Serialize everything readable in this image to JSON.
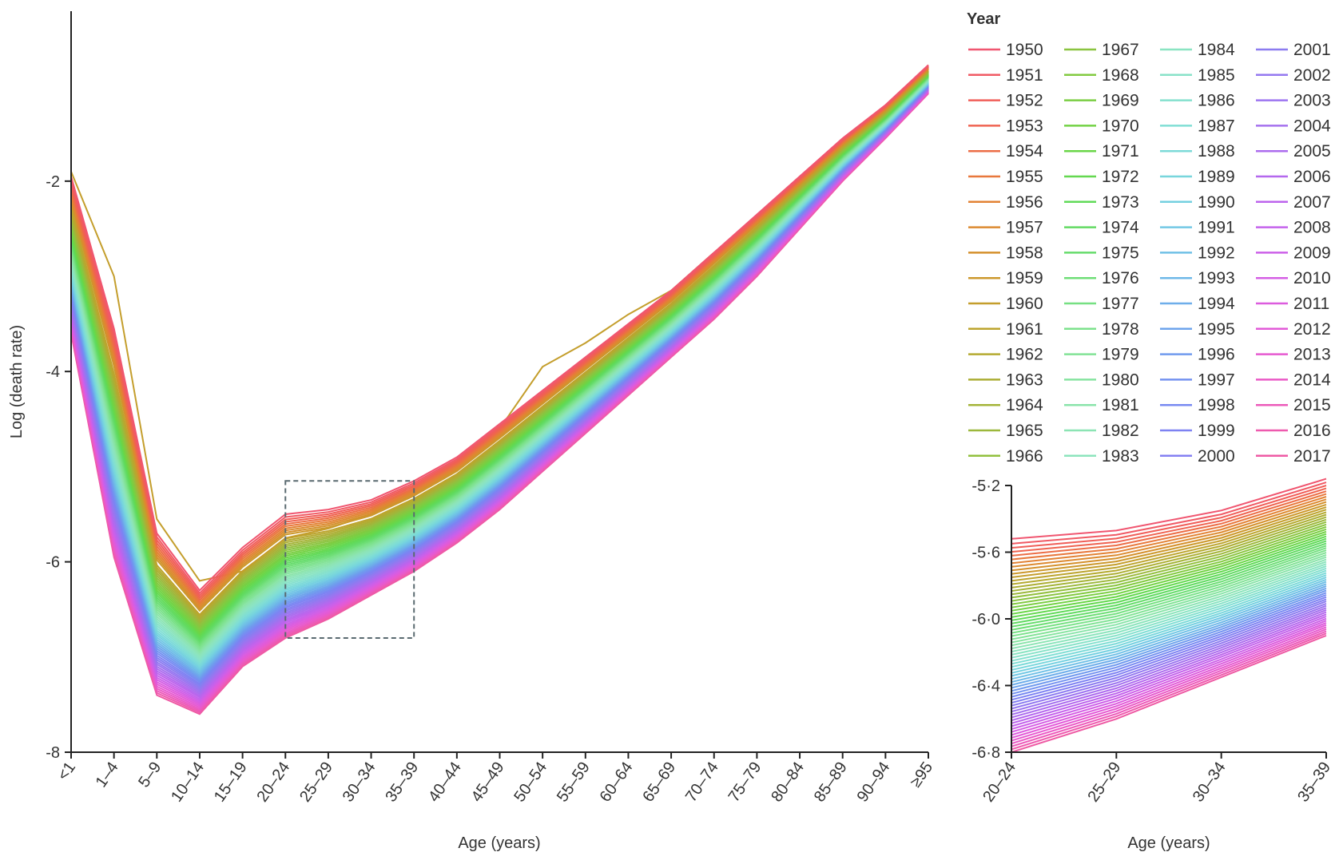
{
  "chart_data": [
    {
      "id": "main",
      "type": "line",
      "xlabel": "Age (years)",
      "ylabel": "Log (death rate)",
      "categories": [
        "<1",
        "1–4",
        "5–9",
        "10–14",
        "15–19",
        "20–24",
        "25–29",
        "30–34",
        "35–39",
        "40–44",
        "45–49",
        "50–54",
        "55–59",
        "60–64",
        "65–69",
        "70–74",
        "75–79",
        "80–84",
        "85–89",
        "90–94",
        "≥95"
      ],
      "ylim": [
        -8,
        -0.55
      ],
      "yticks": [
        -2,
        -4,
        -6,
        -8
      ],
      "ytick_labels": [
        "-2",
        "-4",
        "-6",
        "-8"
      ],
      "series_first": {
        "name": "1950",
        "values": [
          -1.95,
          -3.55,
          -5.7,
          -6.3,
          -5.85,
          -5.5,
          -5.45,
          -5.35,
          -5.15,
          -4.9,
          -4.55,
          -4.2,
          -3.85,
          -3.5,
          -3.15,
          -2.75,
          -2.35,
          -1.95,
          -1.55,
          -1.2,
          -0.78
        ]
      },
      "series_last": {
        "name": "2017",
        "values": [
          -3.6,
          -5.95,
          -7.4,
          -7.6,
          -7.1,
          -6.8,
          -6.6,
          -6.35,
          -6.1,
          -5.8,
          -5.45,
          -5.05,
          -4.65,
          -4.25,
          -3.85,
          -3.45,
          -3.0,
          -2.5,
          -2.0,
          -1.55,
          -1.08
        ]
      },
      "anomaly_series": {
        "name": "1960",
        "values": [
          -1.9,
          -3.0,
          -5.55,
          -6.2,
          -6.1,
          -5.75,
          -5.65,
          -5.5,
          -5.25,
          -4.95,
          -4.6,
          -3.95,
          -3.7,
          -3.4,
          -3.15,
          -2.75,
          -2.38,
          -1.98,
          -1.6,
          -1.22,
          -0.8
        ]
      },
      "inset_box": {
        "x_from": "20–24",
        "x_to": "35–39",
        "y_from": -5.15,
        "y_to": -6.8
      }
    },
    {
      "id": "inset",
      "type": "line",
      "xlabel": "Age (years)",
      "ylabel": "",
      "categories": [
        "20–24",
        "25–29",
        "30–34",
        "35–39"
      ],
      "ylim": [
        -6.8,
        -5.2
      ],
      "yticks": [
        -5.2,
        -5.6,
        -6.0,
        -6.4,
        -6.8
      ],
      "ytick_labels": [
        "-5·2",
        "-5·6",
        "-6·0",
        "-6·4",
        "-6·8"
      ],
      "series_first": {
        "name": "1950",
        "values": [
          -5.52,
          -5.47,
          -5.35,
          -5.16
        ]
      },
      "series_last": {
        "name": "2017",
        "values": [
          -6.8,
          -6.6,
          -6.35,
          -6.1
        ]
      }
    }
  ],
  "legend": {
    "title": "Year",
    "years": [
      "1950",
      "1951",
      "1952",
      "1953",
      "1954",
      "1955",
      "1956",
      "1957",
      "1958",
      "1959",
      "1960",
      "1961",
      "1962",
      "1963",
      "1964",
      "1965",
      "1966",
      "1967",
      "1968",
      "1969",
      "1970",
      "1971",
      "1972",
      "1973",
      "1974",
      "1975",
      "1976",
      "1977",
      "1978",
      "1979",
      "1980",
      "1981",
      "1982",
      "1983",
      "1984",
      "1985",
      "1986",
      "1987",
      "1988",
      "1989",
      "1990",
      "1991",
      "1992",
      "1993",
      "1994",
      "1995",
      "1996",
      "1997",
      "1998",
      "1999",
      "2000",
      "2001",
      "2002",
      "2003",
      "2004",
      "2005",
      "2006",
      "2007",
      "2008",
      "2009",
      "2010",
      "2011",
      "2012",
      "2013",
      "2014",
      "2015",
      "2016",
      "2017"
    ],
    "colors": [
      "#f05670",
      "#f05a64",
      "#f05e58",
      "#ef6350",
      "#ec6d46",
      "#e8783c",
      "#e28234",
      "#dc8a30",
      "#d4902c",
      "#cc982c",
      "#c49e2c",
      "#bca42e",
      "#b4aa30",
      "#acae34",
      "#a4b438",
      "#9cb83c",
      "#92c03e",
      "#8ac440",
      "#82ca40",
      "#7ace42",
      "#72d244",
      "#6ad648",
      "#64d850",
      "#60da58",
      "#62da62",
      "#66dc6c",
      "#6ede76",
      "#76e082",
      "#7ce28c",
      "#82e296",
      "#86e4a0",
      "#8ae4aa",
      "#8ce4b4",
      "#8ce4bc",
      "#8ae4c2",
      "#88e2c8",
      "#84e0ce",
      "#80ded4",
      "#7cdad8",
      "#78d6dc",
      "#74d0e0",
      "#72c8e4",
      "#70c0e6",
      "#6eb8e8",
      "#6eaeea",
      "#6ea4ec",
      "#709aee",
      "#7492f0",
      "#788af2",
      "#7e82f2",
      "#8480f2",
      "#8c7cf0",
      "#9478f0",
      "#9c74f0",
      "#a470ee",
      "#ac6cee",
      "#b468ee",
      "#bc64ec",
      "#c462ec",
      "#cc60e8",
      "#d45ee4",
      "#dc5cde",
      "#e25ad8",
      "#e65ad0",
      "#ea5ac6",
      "#ec5aba",
      "#ee5aae",
      "#ee5aa4"
    ]
  }
}
